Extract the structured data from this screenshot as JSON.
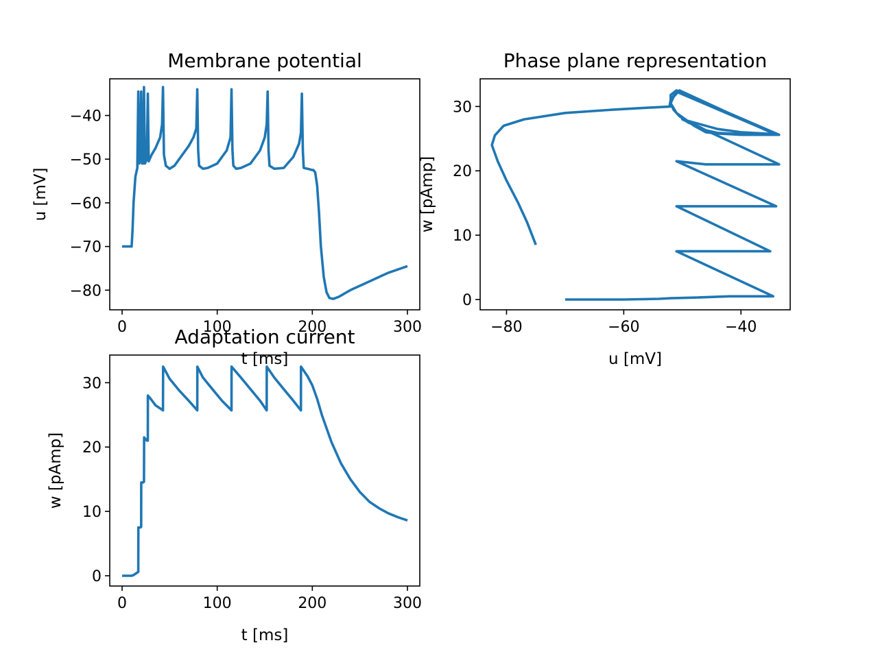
{
  "colors": {
    "series": "#1f77b4",
    "axes": "#000000",
    "background": "#ffffff"
  },
  "chart_data": [
    {
      "type": "line",
      "title": "Membrane potential",
      "xlabel": "t [ms]",
      "ylabel": "u [mV]",
      "xlim": [
        -13,
        313
      ],
      "ylim": [
        -84.5,
        -31.6
      ],
      "xticks": [
        0,
        100,
        200,
        300
      ],
      "yticks": [
        -80,
        -70,
        -60,
        -50,
        -40
      ],
      "grid": false,
      "series": [
        {
          "x": [
            0,
            10,
            11,
            12,
            14,
            16,
            17,
            18,
            19,
            20,
            21,
            22,
            23,
            24,
            25,
            26,
            27,
            28,
            29,
            30,
            31,
            35,
            40,
            42,
            43,
            44,
            46,
            50,
            55,
            60,
            65,
            70,
            75,
            78,
            79,
            80,
            81,
            85,
            90,
            100,
            110,
            114,
            115,
            116,
            117,
            120,
            125,
            135,
            145,
            150,
            152,
            153,
            154,
            155,
            160,
            170,
            180,
            186,
            188,
            189,
            190,
            191,
            195,
            200,
            201,
            203,
            205,
            207,
            209,
            212,
            215,
            218,
            222,
            228,
            240,
            260,
            280,
            300
          ],
          "y": [
            -70,
            -70,
            -66,
            -60,
            -54,
            -52,
            -34.5,
            -51,
            -50,
            -34.5,
            -51,
            -51,
            -33.5,
            -51,
            -50.5,
            -50,
            -35,
            -50.5,
            -50,
            -49.5,
            -49,
            -47.5,
            -45,
            -42,
            -33.5,
            -49,
            -51.5,
            -52.2,
            -51.5,
            -50,
            -48.5,
            -47,
            -45,
            -43,
            -34,
            -48,
            -51.5,
            -52.2,
            -52,
            -51,
            -48,
            -45,
            -34,
            -48,
            -51.5,
            -52.2,
            -52,
            -51,
            -48,
            -45,
            -42,
            -34.5,
            -48,
            -51.5,
            -52.2,
            -52,
            -49.5,
            -46.5,
            -44,
            -35,
            -48,
            -52,
            -52.2,
            -52.5,
            -52.5,
            -53,
            -56,
            -62,
            -70,
            -77,
            -80.5,
            -81.8,
            -82,
            -81.5,
            -80,
            -78,
            -76,
            -74.5
          ]
        }
      ]
    },
    {
      "type": "line",
      "title": "Phase plane representation",
      "xlabel": "u [mV]",
      "ylabel": "w [pAmp]",
      "xlim": [
        -84.5,
        -31.6
      ],
      "ylim": [
        -1.6,
        34.3
      ],
      "xticks": [
        -80,
        -60,
        -40
      ],
      "yticks": [
        0,
        10,
        20,
        30
      ],
      "grid": false,
      "series": [
        {
          "x": [
            -70,
            -60,
            -54,
            -52,
            -48,
            -42,
            -38,
            -34.5,
            -51,
            -45,
            -40,
            -35,
            -51,
            -45,
            -40,
            -34,
            -51,
            -46,
            -40,
            -33.5,
            -50,
            -48,
            -44,
            -40,
            -36,
            -33.5,
            -51,
            -52,
            -52,
            -51,
            -49.5,
            -48,
            -46,
            -44,
            -42,
            -40,
            -34,
            -50.5,
            -51.5,
            -52,
            -51.5,
            -50.5,
            -49,
            -47,
            -46,
            -44,
            -40,
            -33.8,
            -51,
            -52,
            -52.2,
            -52,
            -56,
            -62,
            -70,
            -77,
            -80.5,
            -82,
            -82.5,
            -81.5,
            -80,
            -78,
            -76.5,
            -75
          ],
          "y": [
            0,
            0,
            0.1,
            0.2,
            0.3,
            0.5,
            0.5,
            0.5,
            7.5,
            7.5,
            7.5,
            7.5,
            14.5,
            14.5,
            14.5,
            14.5,
            21.5,
            21,
            21,
            21,
            28,
            27.5,
            26.5,
            26,
            25.8,
            25.6,
            32.5,
            31.8,
            30.5,
            29,
            28,
            27,
            26,
            25.8,
            25.7,
            25.6,
            25.6,
            32.5,
            31.5,
            30.5,
            29.5,
            28.5,
            27.5,
            26.8,
            26.3,
            25.9,
            25.7,
            25.6,
            32.3,
            31,
            30,
            30,
            29.8,
            29.5,
            29,
            28,
            27,
            25.5,
            24,
            21.5,
            18.5,
            15,
            12,
            8.5
          ]
        }
      ]
    },
    {
      "type": "line",
      "title": "Adaptation current",
      "xlabel": "t [ms]",
      "ylabel": "w [pAmp]",
      "xlim": [
        -13,
        313
      ],
      "ylim": [
        -1.6,
        34.3
      ],
      "xticks": [
        0,
        100,
        200,
        300
      ],
      "yticks": [
        0,
        10,
        20,
        30
      ],
      "grid": false,
      "series": [
        {
          "x": [
            0,
            10,
            12,
            16,
            17,
            17.1,
            19,
            20,
            20.1,
            22,
            23,
            23.1,
            26,
            27,
            27.1,
            30,
            35,
            40,
            43,
            43.1,
            50,
            60,
            70,
            79,
            79.1,
            85,
            95,
            105,
            115,
            115.1,
            125,
            135,
            145,
            152,
            152.1,
            160,
            170,
            180,
            188,
            188.1,
            195,
            200,
            205,
            210,
            220,
            230,
            240,
            250,
            260,
            270,
            280,
            290,
            300
          ],
          "y": [
            0,
            0,
            0.1,
            0.5,
            0.6,
            7.5,
            7.5,
            7.6,
            14.5,
            14.5,
            14.6,
            21.5,
            21,
            21,
            28,
            27.5,
            26.5,
            26,
            25.7,
            32.5,
            30.6,
            28.8,
            27.2,
            25.7,
            32.5,
            30.8,
            29,
            27.2,
            25.7,
            32.5,
            30.8,
            29,
            27.2,
            25.7,
            32.5,
            30.8,
            29,
            27.2,
            25.7,
            32.5,
            31,
            29.6,
            27.5,
            25,
            20.8,
            17.5,
            15,
            13,
            11.5,
            10.5,
            9.7,
            9.1,
            8.6
          ]
        }
      ]
    }
  ]
}
